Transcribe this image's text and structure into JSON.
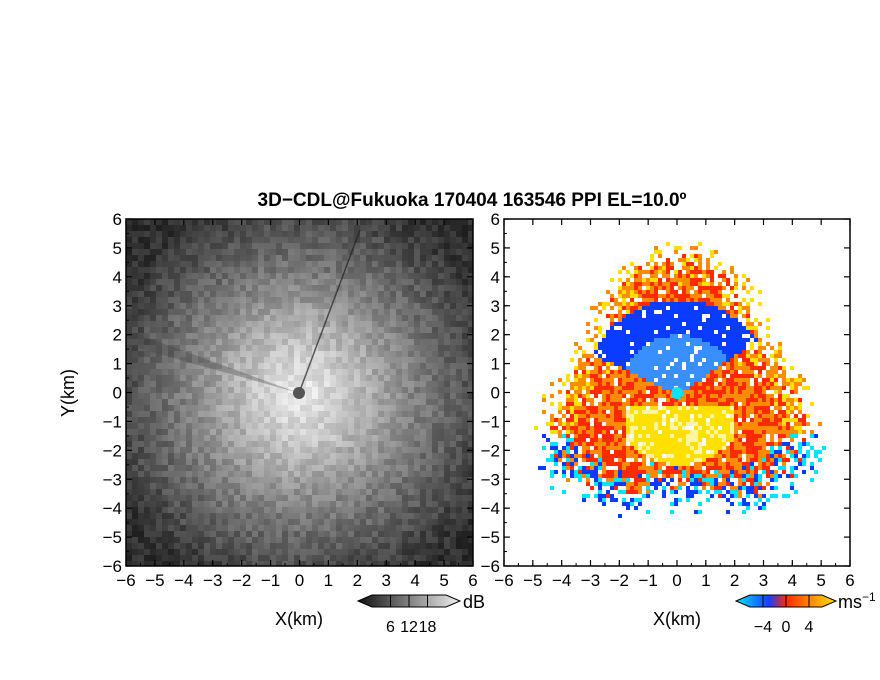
{
  "title": "3D−CDL@Fukuoka 170404 163546 PPI EL=10.0º",
  "chart_data": [
    {
      "type": "heatmap",
      "panel": "left",
      "quantity": "reflectivity (grayscale)",
      "xlabel": "X(km)",
      "ylabel": "Y(km)",
      "xlim": [
        -6,
        6
      ],
      "ylim": [
        -6,
        6
      ],
      "xticks": [
        "−6",
        "−5",
        "−4",
        "−3",
        "−2",
        "−1",
        "0",
        "1",
        "2",
        "3",
        "4",
        "5",
        "6"
      ],
      "yticks": [
        "6",
        "5",
        "4",
        "3",
        "2",
        "1",
        "0",
        "−1",
        "−2",
        "−3",
        "−4",
        "−5",
        "−6"
      ],
      "colorbar": {
        "unit": "dB",
        "ticks": [
          "6",
          "12",
          "18"
        ]
      },
      "colors": {
        "low": "#2a2a2a",
        "high": "#f2f2f2"
      }
    },
    {
      "type": "heatmap",
      "panel": "right",
      "quantity": "Doppler velocity",
      "xlabel": "X(km)",
      "xlim": [
        -6,
        6
      ],
      "ylim": [
        -6,
        6
      ],
      "xticks": [
        "−6",
        "−5",
        "−4",
        "−3",
        "−2",
        "−1",
        "0",
        "1",
        "2",
        "3",
        "4",
        "5",
        "6"
      ],
      "yticks": [
        "6",
        "5",
        "4",
        "3",
        "2",
        "1",
        "0",
        "−1",
        "−2",
        "−3",
        "−4",
        "−5",
        "−6"
      ],
      "colorbar": {
        "unit": "ms",
        "unit_exp": "−1",
        "ticks": [
          "−4",
          "0",
          "4"
        ]
      },
      "colors": [
        "#00e5ff",
        "#0a3cff",
        "#ff2a00",
        "#ff8c00",
        "#ffe000"
      ]
    }
  ]
}
